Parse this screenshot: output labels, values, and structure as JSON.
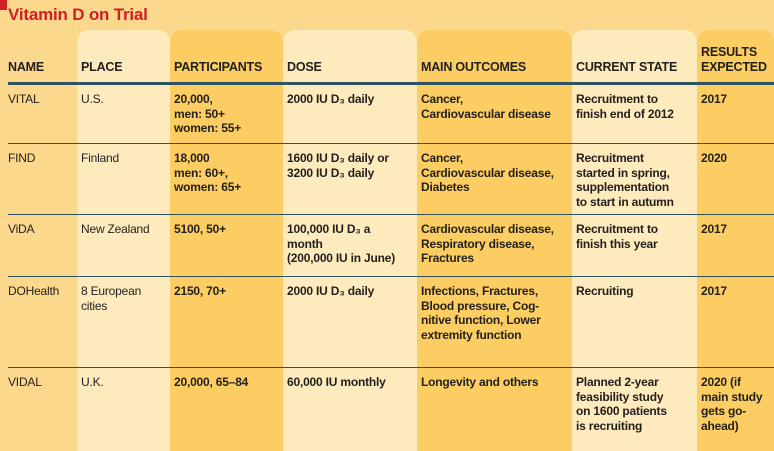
{
  "title": "Vitamin D on Trial",
  "colors": {
    "background": "#fbd88c",
    "stripe_light": "#fdeabd",
    "stripe_gold": "#fbcd62",
    "rule_line": "#2f5260",
    "title_red": "#d01f26",
    "text": "#231f1c"
  },
  "chart_data": {
    "type": "table",
    "title": "Vitamin D on Trial",
    "columns": [
      "NAME",
      "PLACE",
      "PARTICIPANTS",
      "DOSE",
      "MAIN OUTCOMES",
      "CURRENT STATE",
      "RESULTS\nEXPECTED"
    ],
    "rows": [
      [
        "VITAL",
        "U.S.",
        "20,000,\nmen: 50+\nwomen: 55+",
        "2000 IU D₃ daily",
        "Cancer,\nCardiovascular disease",
        "Recruitment to\nfinish end of 2012",
        "2017"
      ],
      [
        "FIND",
        "Finland",
        "18,000\nmen: 60+,\nwomen: 65+",
        "1600 IU D₃ daily or\n3200 IU D₃ daily",
        "Cancer,\nCardiovascular disease,\nDiabetes",
        "Recruitment\nstarted in spring,\nsupplementation\nto start in autumn",
        "2020"
      ],
      [
        "ViDA",
        "New Zealand",
        "5100, 50+",
        "100,000 IU D₃ a\nmonth\n(200,000 IU in June)",
        "Cardiovascular disease,\nRespiratory disease,\nFractures",
        "Recruitment to\nfinish this year",
        "2017"
      ],
      [
        "DOHealth",
        "8 European\ncities",
        "2150, 70+",
        "2000 IU D₃ daily",
        "Infections, Fractures,\nBlood pressure, Cog-\nnitive function, Lower\nextremity function",
        "Recruiting",
        "2017"
      ],
      [
        "VIDAL",
        "U.K.",
        "20,000, 65–84",
        "60,000 IU monthly",
        "Longevity and others",
        "Planned 2-year\nfeasibility study\non 1600 patients\nis recruiting",
        "2020 (if\nmain study\ngets go-\nahead)"
      ]
    ]
  }
}
